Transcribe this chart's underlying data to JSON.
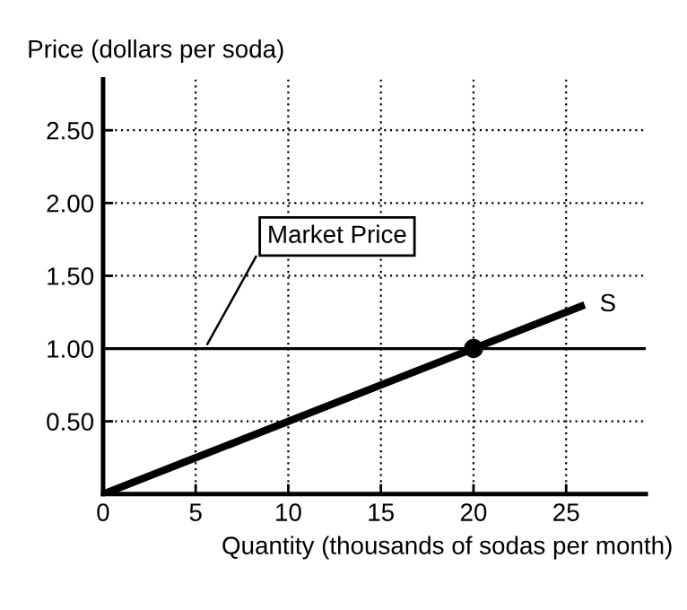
{
  "chart_data": {
    "type": "line",
    "xlabel": "Quantity (thousands of sodas per month)",
    "ylabel": "Price (dollars per soda)",
    "series": [
      {
        "name": "S",
        "color": "#000000",
        "x": [
          0,
          26
        ],
        "values": [
          0,
          1.3
        ]
      },
      {
        "type": "scatter",
        "color": "#000000",
        "x": [
          20
        ],
        "values": [
          1.0
        ],
        "marker": "circle"
      }
    ],
    "xlim": [
      0,
      29.3
    ],
    "ylim": [
      0,
      2.85
    ],
    "xticks": [
      0,
      5,
      10,
      15,
      20,
      25
    ],
    "yticks": [
      {
        "value": 0.5,
        "label": "0.50"
      },
      {
        "value": 1.0,
        "label": "1.00"
      },
      {
        "value": 1.5,
        "label": "1.50"
      },
      {
        "value": 2.0,
        "label": "2.00"
      },
      {
        "value": 2.5,
        "label": "2.50"
      }
    ],
    "grid": true,
    "ref_lines": [
      {
        "axis": "y",
        "value": 1.0,
        "color": "#000000",
        "line_style": "solid"
      }
    ],
    "annotations": [
      {
        "text": "Market Price",
        "x": 5.5,
        "y": 1.0
      }
    ]
  }
}
